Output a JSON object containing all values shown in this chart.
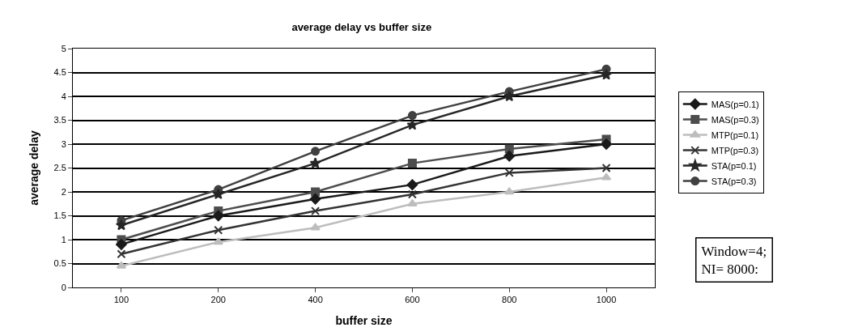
{
  "chart_data": {
    "type": "line",
    "title": "average delay vs buffer size",
    "xlabel": "buffer size",
    "ylabel": "average delay",
    "categories": [
      "100",
      "200",
      "400",
      "600",
      "800",
      "1000"
    ],
    "series": [
      {
        "name": "MAS(p=0.1)",
        "color": "#1a1a1a",
        "marker": "diamond",
        "values": [
          0.9,
          1.5,
          1.85,
          2.15,
          2.75,
          3.0
        ]
      },
      {
        "name": "MAS(p=0.3)",
        "color": "#4d4d4d",
        "marker": "square",
        "values": [
          1.0,
          1.6,
          2.0,
          2.6,
          2.9,
          3.1
        ]
      },
      {
        "name": "MTP(p=0.1)",
        "color": "#bdbdbd",
        "marker": "triangle",
        "values": [
          0.45,
          0.95,
          1.25,
          1.75,
          2.0,
          2.3
        ]
      },
      {
        "name": "MTP(p=0.3)",
        "color": "#333333",
        "marker": "cross",
        "values": [
          0.7,
          1.2,
          1.6,
          1.95,
          2.4,
          2.5
        ]
      },
      {
        "name": "STA(p=0.1)",
        "color": "#262626",
        "marker": "star",
        "values": [
          1.3,
          1.95,
          2.6,
          3.4,
          4.0,
          4.45
        ]
      },
      {
        "name": "STA(p=0.3)",
        "color": "#404040",
        "marker": "circle",
        "values": [
          1.4,
          2.05,
          2.85,
          3.6,
          4.1,
          4.57
        ]
      }
    ],
    "ylim": [
      0,
      5
    ],
    "yticks": [
      0,
      0.5,
      1,
      1.5,
      2,
      2.5,
      3,
      3.5,
      4,
      4.5,
      5
    ],
    "grid": "y",
    "legend": "right",
    "line_style": "solid",
    "annotations": [
      "Window=4;\nNI= 8000:"
    ]
  }
}
